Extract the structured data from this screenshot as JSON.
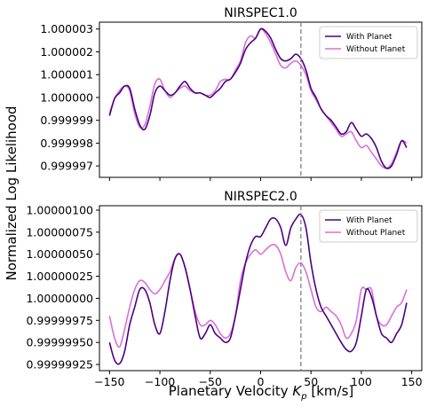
{
  "ylabel": "Normalized Log Likelihood",
  "xlabel_prefix": "Planetary Velocity ",
  "xlabel_var": "K",
  "xlabel_sub": "p",
  "xlabel_unit": " [km/s]",
  "chart_data": [
    {
      "type": "line",
      "title": "NIRSPEC1.0",
      "xlim": [
        -160,
        160
      ],
      "ylim": [
        0.9999965,
        1.0000033
      ],
      "xticks": [
        -150,
        -100,
        -50,
        0,
        50,
        100,
        150
      ],
      "xtick_labels": [
        "",
        "",
        "",
        "",
        "",
        "",
        ""
      ],
      "yticks": [
        0.999997,
        0.999998,
        0.999999,
        1.0,
        1.000001,
        1.000002,
        1.000003
      ],
      "ytick_labels": [
        "0.999997",
        "0.999998",
        "0.999999",
        "1.000000",
        "1.000001",
        "1.000002",
        "1.000003"
      ],
      "vline": 40,
      "legend_position": "top-right",
      "series": [
        {
          "name": "With Planet",
          "color": "#4b0082",
          "x": [
            -150,
            -145,
            -140,
            -135,
            -130,
            -125,
            -120,
            -115,
            -110,
            -105,
            -100,
            -95,
            -90,
            -85,
            -80,
            -75,
            -70,
            -65,
            -60,
            -55,
            -50,
            -45,
            -40,
            -35,
            -30,
            -25,
            -20,
            -15,
            -10,
            -5,
            0,
            5,
            10,
            15,
            20,
            25,
            30,
            35,
            40,
            45,
            50,
            55,
            60,
            65,
            70,
            75,
            80,
            85,
            90,
            95,
            100,
            105,
            110,
            115,
            120,
            125,
            130,
            135,
            140,
            145
          ],
          "y": [
            0.9999992,
            0.99999995,
            1.0000002,
            1.0000005,
            1.0000004,
            0.9999995,
            0.9999988,
            0.9999986,
            0.9999992,
            1.0000002,
            1.0000005,
            1.0000003,
            1.0000001,
            1.0000002,
            1.0000005,
            1.0000007,
            1.0000004,
            1.0000002,
            1.0000002,
            1.0000001,
            1.0,
            1.0000002,
            1.0000004,
            1.0000007,
            1.0000008,
            1.0000011,
            1.0000015,
            1.0000021,
            1.0000024,
            1.0000026,
            1.000003,
            1.0000029,
            1.0000026,
            1.0000021,
            1.0000017,
            1.0000016,
            1.0000017,
            1.0000019,
            1.0000017,
            1.0000012,
            1.0000004,
            1.0,
            0.9999995,
            0.9999992,
            0.999999,
            0.9999987,
            0.9999984,
            0.9999985,
            0.9999989,
            0.9999986,
            0.9999983,
            0.9999984,
            0.9999982,
            0.9999978,
            0.9999972,
            0.9999969,
            0.999997,
            0.9999975,
            0.9999981,
            0.9999978
          ]
        },
        {
          "name": "Without Planet",
          "color": "#da70d6",
          "x": [
            -150,
            -145,
            -140,
            -135,
            -130,
            -125,
            -120,
            -115,
            -110,
            -105,
            -100,
            -95,
            -90,
            -85,
            -80,
            -75,
            -70,
            -65,
            -60,
            -55,
            -50,
            -45,
            -40,
            -35,
            -30,
            -25,
            -20,
            -15,
            -10,
            -5,
            0,
            5,
            10,
            15,
            20,
            25,
            30,
            35,
            40,
            45,
            50,
            55,
            60,
            65,
            70,
            75,
            80,
            85,
            90,
            95,
            100,
            105,
            110,
            115,
            120,
            125,
            130,
            135,
            140,
            145
          ],
          "y": [
            0.9999993,
            0.99999995,
            1.0000003,
            1.0000005,
            1.0000003,
            0.9999993,
            0.9999987,
            0.9999988,
            0.9999996,
            1.0000006,
            1.0000008,
            1.0000003,
            1.0,
            1.0000002,
            1.0000004,
            1.0000005,
            1.0000003,
            1.0000002,
            1.0000002,
            1.0000001,
            1.0000001,
            1.0000003,
            1.0000007,
            1.0000008,
            1.0000008,
            1.0000012,
            1.0000016,
            1.0000024,
            1.0000027,
            1.0000026,
            1.000003,
            1.0000028,
            1.0000024,
            1.0000019,
            1.0000014,
            1.0000013,
            1.0000015,
            1.0000016,
            1.0000014,
            1.000001,
            1.0000003,
            0.9999999,
            0.9999995,
            0.9999992,
            0.9999989,
            0.9999986,
            0.9999983,
            0.9999984,
            0.9999985,
            0.9999981,
            0.9999978,
            0.9999979,
            0.9999976,
            0.9999973,
            0.999997,
            0.9999969,
            0.9999971,
            0.9999976,
            0.9999981,
            0.999998
          ]
        }
      ]
    },
    {
      "type": "line",
      "title": "NIRSPEC2.0",
      "xlim": [
        -160,
        160
      ],
      "ylim": [
        0.99999918,
        1.00000105
      ],
      "xticks": [
        -150,
        -100,
        -50,
        0,
        50,
        100,
        150
      ],
      "xtick_labels": [
        "−150",
        "−100",
        "−50",
        "0",
        "50",
        "100",
        "150"
      ],
      "yticks": [
        0.99999925,
        0.9999995,
        0.99999975,
        1.0,
        1.00000025,
        1.0000005,
        1.00000075,
        1.000001
      ],
      "ytick_labels": [
        "0.99999925",
        "0.99999950",
        "0.99999975",
        "1.00000000",
        "1.00000025",
        "1.00000050",
        "1.00000075",
        "1.00000100"
      ],
      "vline": 40,
      "legend_position": "top-right",
      "series": [
        {
          "name": "With Planet",
          "color": "#4b0082",
          "x": [
            -150,
            -145,
            -140,
            -135,
            -130,
            -125,
            -120,
            -115,
            -110,
            -105,
            -100,
            -95,
            -90,
            -85,
            -80,
            -75,
            -70,
            -65,
            -60,
            -55,
            -50,
            -45,
            -40,
            -35,
            -30,
            -25,
            -20,
            -15,
            -10,
            -5,
            0,
            5,
            10,
            15,
            20,
            25,
            30,
            35,
            40,
            45,
            50,
            55,
            60,
            65,
            70,
            75,
            80,
            85,
            90,
            95,
            100,
            105,
            110,
            115,
            120,
            125,
            130,
            135,
            140,
            145
          ],
          "y": [
            0.9999995,
            0.9999993,
            0.99999926,
            0.9999994,
            0.9999997,
            0.9999999,
            1.0000001,
            1.0000001,
            0.99999995,
            0.9999997,
            0.9999996,
            0.99999985,
            1.0000002,
            1.00000045,
            1.0000005,
            1.00000035,
            1.0000001,
            0.9999998,
            0.99999955,
            0.9999996,
            0.9999997,
            0.9999996,
            0.99999955,
            0.9999995,
            0.99999955,
            0.9999998,
            1.0000001,
            1.0000004,
            1.0000006,
            1.0000007,
            1.0000007,
            1.0000008,
            1.0000009,
            1.0000009,
            1.0000008,
            1.0000006,
            1.0000008,
            1.0000009,
            1.00000095,
            1.0000008,
            1.0000004,
            1.0000001,
            0.9999999,
            0.9999998,
            0.9999997,
            0.9999996,
            0.9999995,
            0.99999942,
            0.9999994,
            0.9999995,
            0.9999998,
            1.0000001,
            1.00000002,
            0.9999998,
            0.9999996,
            0.99999955,
            0.9999995,
            0.9999996,
            0.9999997,
            0.99999995
          ]
        },
        {
          "name": "Without Planet",
          "color": "#da70d6",
          "x": [
            -150,
            -145,
            -140,
            -135,
            -130,
            -125,
            -120,
            -115,
            -110,
            -105,
            -100,
            -95,
            -90,
            -85,
            -80,
            -75,
            -70,
            -65,
            -60,
            -55,
            -50,
            -45,
            -40,
            -35,
            -30,
            -25,
            -20,
            -15,
            -10,
            -5,
            0,
            5,
            10,
            15,
            20,
            25,
            30,
            35,
            40,
            45,
            50,
            55,
            60,
            65,
            70,
            75,
            80,
            85,
            90,
            95,
            100,
            105,
            110,
            115,
            120,
            125,
            130,
            135,
            140,
            145
          ],
          "y": [
            0.9999998,
            0.99999955,
            0.99999945,
            0.99999965,
            0.9999999,
            1.0000001,
            1.0000002,
            1.00000018,
            1.0000001,
            1.00000005,
            1.0000001,
            1.0000002,
            1.0000003,
            1.00000045,
            1.0000005,
            1.00000035,
            1.0000001,
            0.99999985,
            0.9999997,
            0.9999997,
            0.99999975,
            0.9999997,
            0.9999996,
            0.99999955,
            0.9999996,
            0.9999998,
            1.0000002,
            1.0000004,
            1.0000005,
            1.00000055,
            1.0000005,
            1.00000055,
            1.0000006,
            1.0000006,
            1.0000005,
            1.0000003,
            1.0000002,
            1.00000035,
            1.0000004,
            1.0000003,
            1.0000001,
            0.9999999,
            0.99999985,
            0.9999999,
            0.99999985,
            0.9999998,
            0.9999997,
            0.99999955,
            0.9999996,
            0.99999975,
            1.0000001,
            1.0000001,
            1.0000001,
            0.9999998,
            0.9999997,
            0.9999997,
            0.9999998,
            0.9999999,
            0.99999995,
            1.0000001
          ]
        }
      ]
    }
  ]
}
